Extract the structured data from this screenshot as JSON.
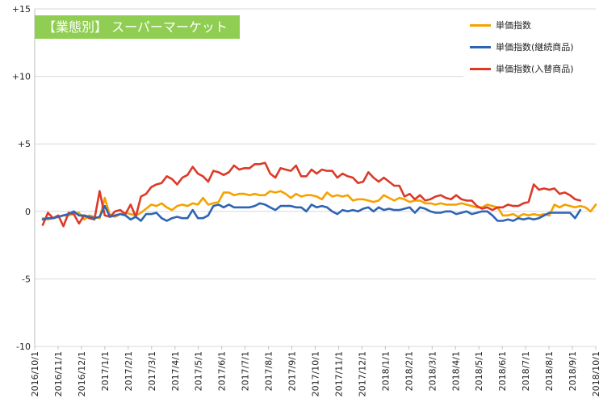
{
  "chart_data": {
    "type": "line",
    "title": "【業態別】 スーパーマーケット",
    "ylim": [
      -10,
      15
    ],
    "y_ticks": [
      15,
      10,
      5,
      0,
      -5,
      -10
    ],
    "y_tick_labels": [
      "+15",
      "+10",
      "+5",
      "0",
      "-5",
      "-10"
    ],
    "grid": "horizontal",
    "legend_placement": "top-right",
    "x_tick_labels": [
      "2016/10/1",
      "2016/11/1",
      "2016/12/1",
      "2017/1/1",
      "2017/2/1",
      "2017/3/1",
      "2017/4/1",
      "2017/5/1",
      "2017/6/1",
      "2017/7/1",
      "2017/8/1",
      "2017/9/1",
      "2017/10/1",
      "2017/11/1",
      "2017/12/1",
      "2018/1/1",
      "2018/2/1",
      "2018/3/1",
      "2018/4/1",
      "2018/5/1",
      "2018/6/1",
      "2018/7/1",
      "2018/8/1",
      "2018/9/1",
      "2018/10/1"
    ],
    "series": [
      {
        "name": "単価指数",
        "color": "#f5a100",
        "values": [
          -0.5,
          -0.6,
          -0.5,
          -0.4,
          -0.3,
          -0.3,
          -0.2,
          -0.1,
          -0.6,
          -0.3,
          -0.4,
          -0.5,
          1.0,
          -0.3,
          -0.4,
          -0.2,
          -0.1,
          -0.2,
          -0.3,
          -0.1,
          0.2,
          0.5,
          0.4,
          0.6,
          0.3,
          0.1,
          0.4,
          0.5,
          0.4,
          0.6,
          0.5,
          1.0,
          0.5,
          0.6,
          0.7,
          1.4,
          1.4,
          1.2,
          1.3,
          1.3,
          1.2,
          1.3,
          1.2,
          1.2,
          1.5,
          1.4,
          1.5,
          1.3,
          1.0,
          1.3,
          1.1,
          1.2,
          1.2,
          1.1,
          0.9,
          1.4,
          1.1,
          1.2,
          1.1,
          1.2,
          0.8,
          0.9,
          0.9,
          0.8,
          0.7,
          0.8,
          1.2,
          1.0,
          0.8,
          1.0,
          0.9,
          0.7,
          0.8,
          0.8,
          0.6,
          0.6,
          0.5,
          0.6,
          0.5,
          0.5,
          0.5,
          0.6,
          0.5,
          0.4,
          0.3,
          0.3,
          0.5,
          0.4,
          0.3,
          -0.3,
          -0.3,
          -0.2,
          -0.4,
          -0.2,
          -0.3,
          -0.2,
          -0.3,
          -0.2,
          -0.3,
          0.5,
          0.3,
          0.5,
          0.4,
          0.3,
          0.4,
          0.3,
          0.0,
          0.5
        ]
      },
      {
        "name": "単価指数(継続商品)",
        "color": "#2e64b4",
        "values": [
          -0.6,
          -0.5,
          -0.5,
          -0.4,
          -0.3,
          -0.2,
          0.0,
          -0.3,
          -0.3,
          -0.4,
          -0.5,
          -0.4,
          0.4,
          -0.4,
          -0.3,
          -0.2,
          -0.3,
          -0.6,
          -0.4,
          -0.7,
          -0.2,
          -0.2,
          -0.1,
          -0.5,
          -0.7,
          -0.5,
          -0.4,
          -0.5,
          -0.5,
          0.1,
          -0.5,
          -0.5,
          -0.3,
          0.4,
          0.5,
          0.3,
          0.5,
          0.3,
          0.3,
          0.3,
          0.3,
          0.4,
          0.6,
          0.5,
          0.3,
          0.1,
          0.4,
          0.4,
          0.4,
          0.3,
          0.3,
          0.0,
          0.5,
          0.3,
          0.4,
          0.3,
          0.0,
          -0.2,
          0.1,
          0.0,
          0.1,
          0.0,
          0.2,
          0.3,
          0.0,
          0.3,
          0.1,
          0.2,
          0.1,
          0.1,
          0.2,
          0.3,
          -0.1,
          0.3,
          0.2,
          0.0,
          -0.1,
          -0.1,
          0.0,
          0.0,
          -0.2,
          -0.1,
          0.0,
          -0.2,
          -0.1,
          0.0,
          0.0,
          -0.3,
          -0.7,
          -0.7,
          -0.6,
          -0.7,
          -0.5,
          -0.6,
          -0.5,
          -0.6,
          -0.5,
          -0.3,
          -0.1,
          -0.1,
          -0.1,
          -0.1,
          -0.1,
          -0.5,
          0.1
        ]
      },
      {
        "name": "単価指数(入替商品)",
        "color": "#dc3a28",
        "values": [
          -1.0,
          -0.1,
          -0.5,
          -0.3,
          -1.1,
          -0.1,
          -0.2,
          -0.9,
          -0.3,
          -0.5,
          -0.6,
          1.5,
          -0.3,
          -0.4,
          0.0,
          0.1,
          -0.2,
          0.5,
          -0.4,
          1.1,
          1.3,
          1.8,
          2.0,
          2.1,
          2.6,
          2.4,
          2.0,
          2.5,
          2.7,
          3.3,
          2.8,
          2.6,
          2.2,
          3.0,
          2.9,
          2.7,
          2.9,
          3.4,
          3.1,
          3.2,
          3.2,
          3.5,
          3.5,
          3.6,
          2.8,
          2.5,
          3.2,
          3.1,
          3.0,
          3.4,
          2.6,
          2.6,
          3.1,
          2.8,
          3.1,
          3.0,
          3.0,
          2.5,
          2.8,
          2.6,
          2.5,
          2.1,
          2.2,
          2.9,
          2.5,
          2.2,
          2.5,
          2.2,
          1.9,
          1.9,
          1.1,
          1.3,
          0.9,
          1.2,
          0.8,
          0.9,
          1.1,
          1.2,
          1.0,
          0.9,
          1.2,
          0.9,
          0.8,
          0.8,
          0.4,
          0.2,
          0.3,
          0.1,
          0.3,
          0.3,
          0.5,
          0.4,
          0.4,
          0.6,
          0.7,
          2.0,
          1.6,
          1.7,
          1.6,
          1.7,
          1.3,
          1.4,
          1.2,
          0.9,
          0.8
        ]
      }
    ]
  }
}
